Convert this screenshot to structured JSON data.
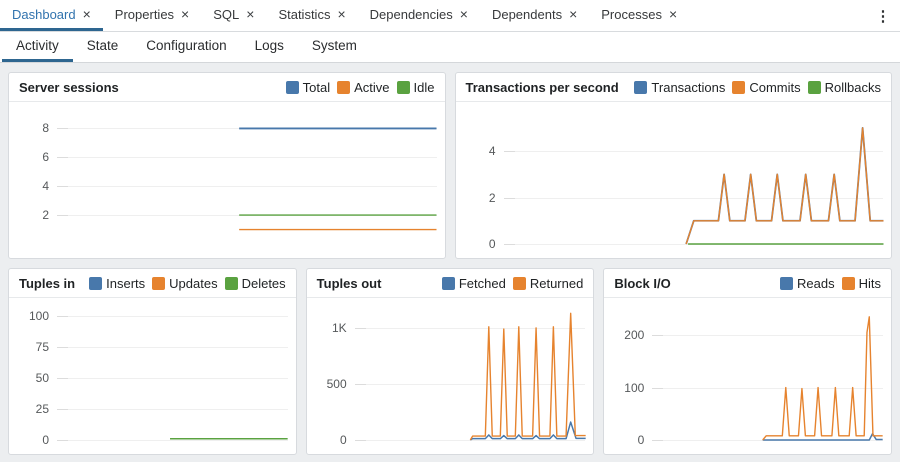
{
  "window": {
    "menu_icon": "kebab-vertical",
    "menu_glyph": "⋮",
    "close_glyph": "×"
  },
  "theme": {
    "accent": "#2e6690",
    "active_tab_text": "#3173ae",
    "series_blue": "#4878ab",
    "series_orange": "#e6832e",
    "series_green": "#5aa240"
  },
  "document_tabs": [
    {
      "label": "Dashboard",
      "active": true
    },
    {
      "label": "Properties",
      "active": false
    },
    {
      "label": "SQL",
      "active": false
    },
    {
      "label": "Statistics",
      "active": false
    },
    {
      "label": "Dependencies",
      "active": false
    },
    {
      "label": "Dependents",
      "active": false
    },
    {
      "label": "Processes",
      "active": false
    }
  ],
  "dashboard_tabs": [
    {
      "label": "Activity",
      "active": true
    },
    {
      "label": "State",
      "active": false
    },
    {
      "label": "Configuration",
      "active": false
    },
    {
      "label": "Logs",
      "active": false
    },
    {
      "label": "System",
      "active": false
    }
  ],
  "chart_data": [
    {
      "type": "line",
      "title": "Server sessions",
      "ylim": [
        0,
        9
      ],
      "grid": true,
      "legend_position": "top-right",
      "ticks": [
        {
          "label": "8",
          "value": 8
        },
        {
          "label": "6",
          "value": 6
        },
        {
          "label": "4",
          "value": 4
        },
        {
          "label": "2",
          "value": 2
        }
      ],
      "legend": [
        {
          "label": "Total",
          "color": "#4878ab"
        },
        {
          "label": "Active",
          "color": "#e6832e"
        },
        {
          "label": "Idle",
          "color": "#5aa240"
        }
      ],
      "series": [
        {
          "name": "Total",
          "color": "#4878ab",
          "width": 1.8,
          "points": [
            [
              48,
              8
            ],
            [
              100,
              8
            ]
          ]
        },
        {
          "name": "Idle",
          "color": "#5aa240",
          "width": 1.4,
          "points": [
            [
              48,
              2
            ],
            [
              100,
              2
            ]
          ]
        },
        {
          "name": "Active",
          "color": "#e6832e",
          "width": 1.4,
          "points": [
            [
              48,
              1
            ],
            [
              100,
              1
            ]
          ]
        }
      ]
    },
    {
      "type": "line",
      "title": "Transactions per second",
      "ylim": [
        0,
        5.6
      ],
      "grid": true,
      "legend_position": "top-right",
      "ticks": [
        {
          "label": "4",
          "value": 4
        },
        {
          "label": "2",
          "value": 2
        },
        {
          "label": "0",
          "value": 0
        }
      ],
      "legend": [
        {
          "label": "Transactions",
          "color": "#4878ab"
        },
        {
          "label": "Commits",
          "color": "#e6832e"
        },
        {
          "label": "Rollbacks",
          "color": "#5aa240"
        }
      ],
      "series": [
        {
          "name": "Rollbacks",
          "color": "#5aa240",
          "width": 1.4,
          "points": [
            [
              48.5,
              0
            ],
            [
              100,
              0
            ]
          ]
        },
        {
          "name": "Transactions",
          "color": "#4878ab",
          "width": 1.8,
          "points": [
            [
              48,
              0
            ],
            [
              50,
              1
            ],
            [
              56.5,
              1
            ],
            [
              58,
              3
            ],
            [
              59.5,
              1
            ],
            [
              63.5,
              1
            ],
            [
              65,
              3
            ],
            [
              66.5,
              1
            ],
            [
              70.5,
              1
            ],
            [
              72,
              3
            ],
            [
              73.5,
              1
            ],
            [
              78,
              1
            ],
            [
              79.5,
              3
            ],
            [
              81,
              1
            ],
            [
              85.5,
              1
            ],
            [
              87,
              3
            ],
            [
              88.5,
              1
            ],
            [
              92.5,
              1
            ],
            [
              94.5,
              5
            ],
            [
              96.5,
              1
            ],
            [
              100,
              1
            ]
          ]
        },
        {
          "name": "Commits",
          "color": "#e6832e",
          "width": 1.4,
          "points": [
            [
              48,
              0
            ],
            [
              50,
              1
            ],
            [
              56.5,
              1
            ],
            [
              58,
              3
            ],
            [
              59.5,
              1
            ],
            [
              63.5,
              1
            ],
            [
              65,
              3
            ],
            [
              66.5,
              1
            ],
            [
              70.5,
              1
            ],
            [
              72,
              3
            ],
            [
              73.5,
              1
            ],
            [
              78,
              1
            ],
            [
              79.5,
              3
            ],
            [
              81,
              1
            ],
            [
              85.5,
              1
            ],
            [
              87,
              3
            ],
            [
              88.5,
              1
            ],
            [
              92.5,
              1
            ],
            [
              94.5,
              5
            ],
            [
              96.5,
              1
            ],
            [
              100,
              1
            ]
          ]
        }
      ]
    },
    {
      "type": "line",
      "title": "Tuples in",
      "ylim": [
        0,
        105
      ],
      "grid": true,
      "legend_position": "top-right",
      "ticks": [
        {
          "label": "100",
          "value": 100
        },
        {
          "label": "75",
          "value": 75
        },
        {
          "label": "50",
          "value": 50
        },
        {
          "label": "25",
          "value": 25
        },
        {
          "label": "0",
          "value": 0
        }
      ],
      "legend": [
        {
          "label": "Inserts",
          "color": "#4878ab"
        },
        {
          "label": "Updates",
          "color": "#e6832e"
        },
        {
          "label": "Deletes",
          "color": "#5aa240"
        }
      ],
      "series": [
        {
          "name": "Deletes",
          "color": "#5aa240",
          "width": 1.4,
          "points": [
            [
              49,
              1
            ],
            [
              100,
              1
            ]
          ]
        }
      ]
    },
    {
      "type": "line",
      "title": "Tuples out",
      "ylim": [
        0,
        1160
      ],
      "grid": true,
      "legend_position": "top-right",
      "ticks": [
        {
          "label": "1K",
          "value": 1000
        },
        {
          "label": "500",
          "value": 500
        },
        {
          "label": "0",
          "value": 0
        }
      ],
      "legend": [
        {
          "label": "Fetched",
          "color": "#4878ab"
        },
        {
          "label": "Returned",
          "color": "#e6832e"
        }
      ],
      "series": [
        {
          "name": "Fetched",
          "color": "#4878ab",
          "width": 1.5,
          "points": [
            [
              50,
              0
            ],
            [
              51,
              12
            ],
            [
              56.5,
              12
            ],
            [
              58,
              45
            ],
            [
              59.5,
              12
            ],
            [
              63,
              12
            ],
            [
              64.5,
              40
            ],
            [
              66,
              12
            ],
            [
              69.5,
              12
            ],
            [
              71,
              45
            ],
            [
              72.5,
              12
            ],
            [
              77,
              12
            ],
            [
              78.5,
              40
            ],
            [
              80,
              12
            ],
            [
              84.5,
              12
            ],
            [
              86,
              45
            ],
            [
              87.5,
              12
            ],
            [
              91.5,
              12
            ],
            [
              93.5,
              160
            ],
            [
              95.8,
              15
            ],
            [
              100,
              15
            ]
          ]
        },
        {
          "name": "Returned",
          "color": "#e6832e",
          "width": 1.4,
          "points": [
            [
              50,
              0
            ],
            [
              51,
              35
            ],
            [
              56.5,
              35
            ],
            [
              58,
              1010
            ],
            [
              59.5,
              35
            ],
            [
              63,
              35
            ],
            [
              64.5,
              990
            ],
            [
              66,
              35
            ],
            [
              69.5,
              35
            ],
            [
              71,
              1010
            ],
            [
              72.5,
              35
            ],
            [
              77,
              35
            ],
            [
              78.5,
              1000
            ],
            [
              80,
              35
            ],
            [
              84.5,
              35
            ],
            [
              86,
              1010
            ],
            [
              87.5,
              35
            ],
            [
              91.5,
              35
            ],
            [
              93.5,
              1130
            ],
            [
              95.5,
              40
            ],
            [
              100,
              40
            ]
          ]
        }
      ]
    },
    {
      "type": "line",
      "title": "Block I/O",
      "ylim": [
        0,
        248
      ],
      "grid": true,
      "legend_position": "top-right",
      "ticks": [
        {
          "label": "200",
          "value": 200
        },
        {
          "label": "100",
          "value": 100
        },
        {
          "label": "0",
          "value": 0
        }
      ],
      "legend": [
        {
          "label": "Reads",
          "color": "#4878ab"
        },
        {
          "label": "Hits",
          "color": "#e6832e"
        }
      ],
      "series": [
        {
          "name": "Reads",
          "color": "#4878ab",
          "width": 1.5,
          "points": [
            [
              48,
              0
            ],
            [
              94.2,
              0
            ],
            [
              95.6,
              12
            ],
            [
              97.2,
              1
            ],
            [
              100,
              1
            ]
          ]
        },
        {
          "name": "Hits",
          "color": "#e6832e",
          "width": 1.4,
          "points": [
            [
              48,
              0
            ],
            [
              49.5,
              8
            ],
            [
              56.5,
              8
            ],
            [
              58,
              100
            ],
            [
              59.5,
              8
            ],
            [
              63.5,
              8
            ],
            [
              65,
              98
            ],
            [
              66.5,
              8
            ],
            [
              70.5,
              8
            ],
            [
              72,
              100
            ],
            [
              73.5,
              8
            ],
            [
              78,
              8
            ],
            [
              79.5,
              100
            ],
            [
              81,
              8
            ],
            [
              85.5,
              8
            ],
            [
              87,
              100
            ],
            [
              88.5,
              8
            ],
            [
              92,
              8
            ],
            [
              93.2,
              205
            ],
            [
              94.2,
              235
            ],
            [
              95.8,
              8
            ],
            [
              100,
              8
            ]
          ]
        }
      ]
    }
  ]
}
